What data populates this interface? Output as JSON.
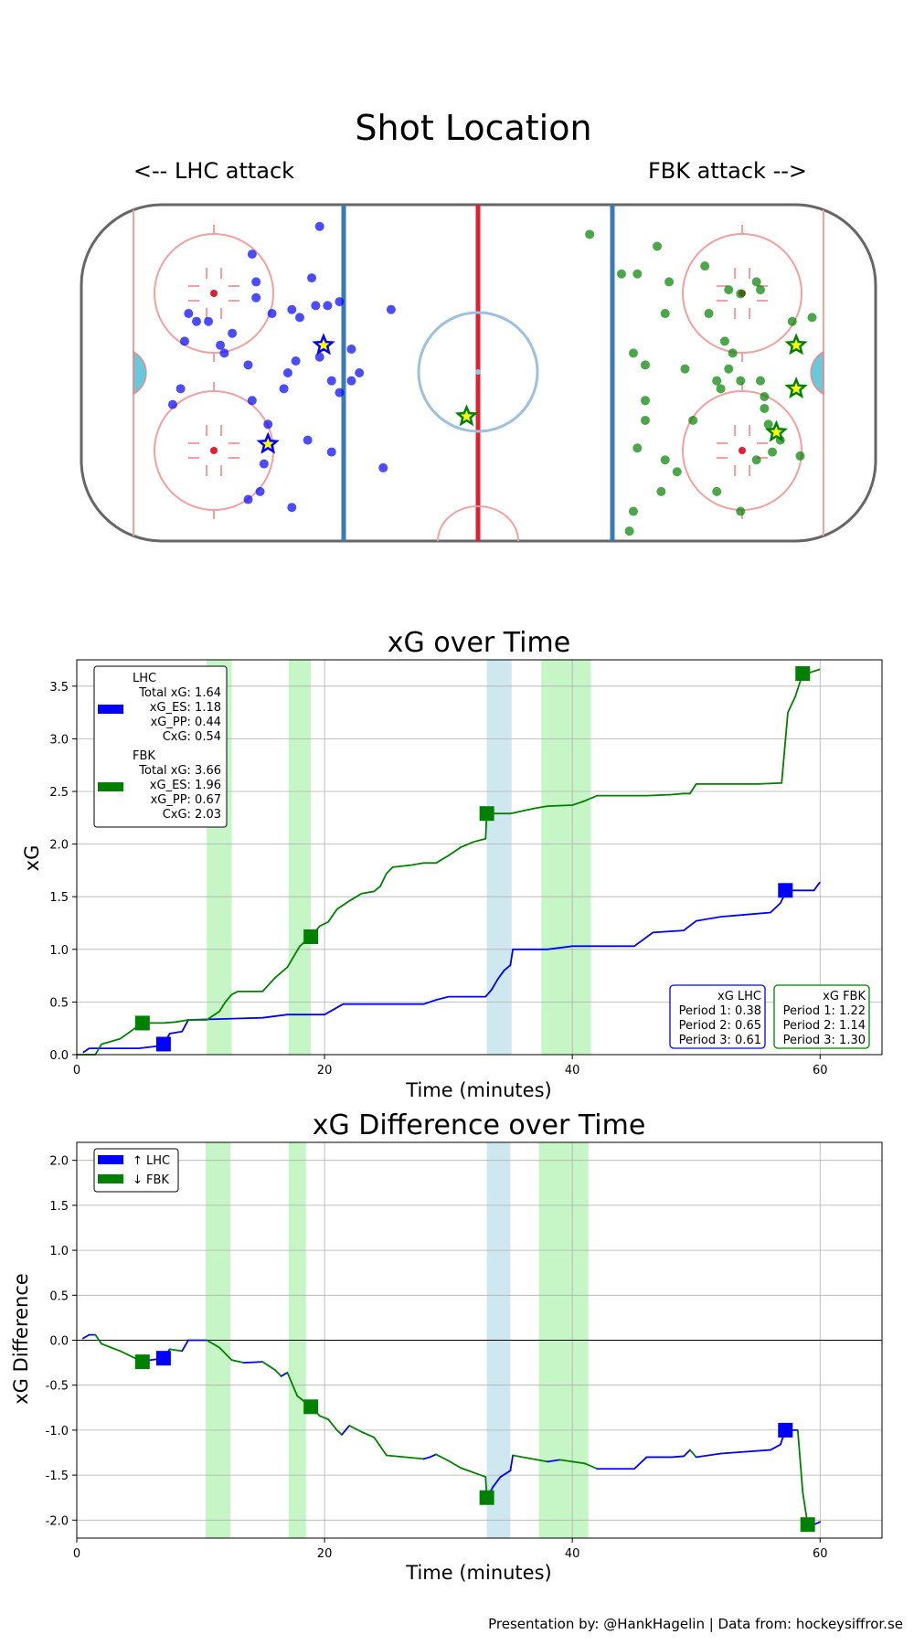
{
  "shot_map": {
    "title": "Shot Location",
    "left_label": "<-- LHC attack",
    "right_label": "FBK attack -->",
    "teams": [
      {
        "name": "LHC",
        "color": "#0000ff"
      },
      {
        "name": "FBK",
        "color": "#008000"
      }
    ]
  },
  "xg_chart": {
    "title": "xG over Time",
    "legend": {
      "lhc_lines": [
        "LHC",
        "Total xG: 1.64",
        "xG_ES: 1.18",
        "xG_PP: 0.44",
        "CxG: 0.54"
      ],
      "fbk_lines": [
        "FBK",
        "Total xG: 3.66",
        "xG_ES: 1.96",
        "xG_PP: 0.67",
        "CxG: 2.03"
      ]
    },
    "period_boxes": {
      "lhc": [
        "xG LHC",
        "Period 1: 0.38",
        "Period 2: 0.65",
        "Period 3: 0.61"
      ],
      "fbk": [
        "xG FBK",
        "Period 1: 1.22",
        "Period 2: 1.14",
        "Period 3: 1.30"
      ]
    }
  },
  "diff_chart": {
    "title": "xG Difference over Time",
    "legend": {
      "lhc": "↑ LHC",
      "fbk": "↓ FBK"
    }
  },
  "footer": "Presentation by: @HankHagelin | Data from: hockeysiffror.se",
  "colors": {
    "lhc": "#0000ff",
    "fbk": "#008000",
    "pp_fbk": "#c6f5c6",
    "pp_lhc": "#cfe8f0"
  },
  "chart_data": [
    {
      "type": "scatter",
      "title": "Shot Location",
      "xlim": [
        -100,
        100
      ],
      "ylim": [
        -42.5,
        42.5
      ],
      "series": [
        {
          "name": "LHC shots",
          "color": "#0000ff",
          "points": [
            [
              -40,
              37
            ],
            [
              -57,
              30
            ],
            [
              -56,
              23
            ],
            [
              -42,
              24
            ],
            [
              -56,
              19
            ],
            [
              -52,
              15
            ],
            [
              -41,
              17
            ],
            [
              -47,
              16
            ],
            [
              -45,
              14
            ],
            [
              -38,
              17
            ],
            [
              -35,
              18
            ],
            [
              -73,
              15
            ],
            [
              -71,
              13
            ],
            [
              -74,
              8
            ],
            [
              -68,
              13
            ],
            [
              -62,
              10
            ],
            [
              -65,
              7
            ],
            [
              -64,
              5
            ],
            [
              -58,
              2
            ],
            [
              -46,
              3
            ],
            [
              -40,
              4
            ],
            [
              -32,
              6
            ],
            [
              -30,
              0
            ],
            [
              -32,
              -2
            ],
            [
              -35,
              -5
            ],
            [
              -48,
              0
            ],
            [
              -49,
              -4
            ],
            [
              -75,
              -4
            ],
            [
              -77,
              -8
            ],
            [
              -57,
              -7
            ],
            [
              -53,
              -13
            ],
            [
              -43,
              -17
            ],
            [
              -37,
              -20
            ],
            [
              -54,
              -23
            ],
            [
              -55,
              -30
            ],
            [
              -58,
              -32
            ],
            [
              -47,
              -34
            ],
            [
              -24,
              -24
            ],
            [
              -22,
              16
            ],
            [
              -37,
              -2
            ]
          ]
        },
        {
          "name": "LHC goals",
          "color": "#0000ff",
          "goal": true,
          "points": [
            [
              -39,
              7
            ],
            [
              -53,
              -18
            ]
          ]
        },
        {
          "name": "FBK shots",
          "color": "#008000",
          "points": [
            [
              28,
              35
            ],
            [
              36,
              25
            ],
            [
              45,
              32
            ],
            [
              40,
              25
            ],
            [
              48,
              23
            ],
            [
              57,
              27
            ],
            [
              63,
              21
            ],
            [
              71,
              21
            ],
            [
              70,
              23
            ],
            [
              66,
              20
            ],
            [
              47,
              15
            ],
            [
              58,
              15
            ],
            [
              79,
              13
            ],
            [
              84,
              14
            ],
            [
              39,
              5
            ],
            [
              42,
              2
            ],
            [
              52,
              1
            ],
            [
              62,
              8
            ],
            [
              64,
              5
            ],
            [
              63,
              1
            ],
            [
              60,
              -2
            ],
            [
              61,
              -4
            ],
            [
              66,
              -2
            ],
            [
              71,
              -2
            ],
            [
              72,
              -6
            ],
            [
              42,
              -7
            ],
            [
              42,
              -12
            ],
            [
              54,
              -12
            ],
            [
              72,
              -9
            ],
            [
              73,
              -13
            ],
            [
              40,
              -19
            ],
            [
              47,
              -22
            ],
            [
              50,
              -25
            ],
            [
              81,
              -21
            ],
            [
              76,
              -17
            ],
            [
              74,
              -20
            ],
            [
              60,
              -30
            ],
            [
              46,
              -30
            ],
            [
              66,
              -35
            ],
            [
              39,
              -35
            ],
            [
              38,
              -40
            ],
            [
              70,
              -22
            ]
          ]
        },
        {
          "name": "FBK goals",
          "color": "#008000",
          "goal": true,
          "points": [
            [
              80,
              7
            ],
            [
              80,
              -4
            ],
            [
              75,
              -15
            ],
            [
              -3,
              -11
            ]
          ]
        }
      ]
    },
    {
      "type": "line",
      "title": "xG over Time",
      "xlabel": "Time (minutes)",
      "ylabel": "xG",
      "xlim": [
        0,
        65
      ],
      "ylim": [
        0,
        3.75
      ],
      "xticks": [
        0,
        20,
        40,
        60
      ],
      "yticks": [
        0.0,
        0.5,
        1.0,
        1.5,
        2.0,
        2.5,
        3.0,
        3.5
      ],
      "pp_fbk": [
        [
          10.5,
          12.5
        ],
        [
          17.1,
          18.9
        ],
        [
          37.5,
          41.5
        ]
      ],
      "pp_lhc": [
        [
          33.1,
          35.1
        ]
      ],
      "series": [
        {
          "name": "LHC",
          "color": "#0000ff",
          "x": [
            0.5,
            1,
            1.5,
            3,
            5,
            6.5,
            7,
            7.5,
            8.5,
            9,
            15,
            17,
            20,
            21.5,
            28,
            29,
            30,
            32,
            33,
            33.5,
            34,
            34.5,
            35,
            35.2,
            38,
            40,
            45,
            46.5,
            49,
            50,
            52,
            54,
            56,
            56.8,
            57.3,
            58.5,
            59.5,
            60
          ],
          "y": [
            0.02,
            0.06,
            0.06,
            0.06,
            0.06,
            0.08,
            0.1,
            0.2,
            0.22,
            0.33,
            0.35,
            0.38,
            0.38,
            0.48,
            0.48,
            0.52,
            0.55,
            0.55,
            0.55,
            0.62,
            0.72,
            0.8,
            0.85,
            1.0,
            1.0,
            1.03,
            1.03,
            1.16,
            1.18,
            1.27,
            1.31,
            1.33,
            1.35,
            1.44,
            1.56,
            1.56,
            1.56,
            1.64
          ]
        },
        {
          "name": "FBK",
          "color": "#008000",
          "x": [
            0,
            1.5,
            2,
            3.5,
            5.3,
            6,
            7,
            8,
            9,
            10.5,
            11.5,
            12,
            12.5,
            13,
            15,
            16,
            17,
            18,
            18.9,
            19.6,
            20.3,
            21,
            22,
            23,
            24,
            24.5,
            25,
            25.5,
            27,
            28,
            29,
            30,
            31,
            32,
            33,
            33.1,
            35,
            37,
            38,
            40,
            41,
            42,
            45,
            46,
            48,
            49,
            49.5,
            50,
            55,
            56.9,
            57.4,
            58,
            58.6,
            59.2,
            60
          ],
          "y": [
            0,
            0,
            0.1,
            0.15,
            0.3,
            0.3,
            0.3,
            0.31,
            0.33,
            0.33,
            0.41,
            0.5,
            0.57,
            0.6,
            0.6,
            0.73,
            0.83,
            1.03,
            1.12,
            1.22,
            1.26,
            1.38,
            1.46,
            1.53,
            1.55,
            1.6,
            1.72,
            1.78,
            1.8,
            1.82,
            1.82,
            1.89,
            1.97,
            2.02,
            2.05,
            2.29,
            2.29,
            2.34,
            2.36,
            2.37,
            2.41,
            2.46,
            2.46,
            2.46,
            2.47,
            2.48,
            2.48,
            2.57,
            2.57,
            2.58,
            3.25,
            3.4,
            3.62,
            3.63,
            3.66
          ]
        }
      ],
      "goals": [
        {
          "team": "LHC",
          "x": [
            7,
            57.2
          ],
          "y": [
            0.1,
            1.56
          ]
        },
        {
          "team": "FBK",
          "x": [
            5.3,
            18.9,
            33.1,
            58.6
          ],
          "y": [
            0.3,
            1.12,
            2.29,
            3.62
          ]
        }
      ],
      "legend": [
        "LHC Total xG: 1.64 xG_ES: 1.18 xG_PP: 0.44 CxG: 0.54",
        "FBK Total xG: 3.66 xG_ES: 1.96 xG_PP: 0.67 CxG: 2.03"
      ]
    },
    {
      "type": "line",
      "title": "xG Difference over Time",
      "xlabel": "Time (minutes)",
      "ylabel": "xG Difference",
      "xlim": [
        0,
        65
      ],
      "ylim": [
        -2.2,
        2.2
      ],
      "xticks": [
        0,
        20,
        40,
        60
      ],
      "yticks": [
        2.0,
        1.5,
        1.0,
        0.5,
        0.0,
        -0.5,
        -1.0,
        -1.5,
        -2.0
      ],
      "pp_fbk": [
        [
          10.4,
          12.4
        ],
        [
          17.1,
          18.5
        ],
        [
          37.3,
          41.3
        ]
      ],
      "pp_lhc": [
        [
          33.1,
          35.0
        ]
      ],
      "series": [
        {
          "name": "xG difference",
          "x": [
            0.5,
            1,
            1.5,
            2,
            3.5,
            5.3,
            6,
            7,
            7.5,
            8.5,
            9,
            10.5,
            11.5,
            12.5,
            13.5,
            15,
            16,
            16.5,
            17,
            17.8,
            18.9,
            19.6,
            20.3,
            21,
            21.4,
            22,
            23,
            24,
            25,
            28,
            28.5,
            29,
            30,
            31,
            32,
            33,
            33.1,
            33.6,
            34.2,
            35,
            35.2,
            38,
            39,
            40,
            41,
            42,
            45,
            46,
            48,
            49,
            49.5,
            50,
            52,
            54,
            56,
            56.8,
            57.2,
            58.2,
            58.6,
            59,
            59.5,
            60
          ],
          "y": [
            0.02,
            0.06,
            0.06,
            -0.04,
            -0.12,
            -0.24,
            -0.22,
            -0.2,
            -0.1,
            -0.12,
            0.0,
            0.0,
            -0.08,
            -0.22,
            -0.25,
            -0.24,
            -0.33,
            -0.4,
            -0.36,
            -0.62,
            -0.74,
            -0.84,
            -0.88,
            -1.0,
            -1.05,
            -0.95,
            -1.02,
            -1.08,
            -1.28,
            -1.32,
            -1.3,
            -1.27,
            -1.34,
            -1.42,
            -1.47,
            -1.52,
            -1.75,
            -1.63,
            -1.52,
            -1.45,
            -1.28,
            -1.35,
            -1.33,
            -1.35,
            -1.37,
            -1.43,
            -1.43,
            -1.3,
            -1.3,
            -1.29,
            -1.22,
            -1.3,
            -1.26,
            -1.24,
            -1.22,
            -1.16,
            -1.0,
            -1.0,
            -1.69,
            -2.05,
            -2.05,
            -2.02
          ]
        }
      ],
      "goals": [
        {
          "team": "LHC",
          "x": [
            7,
            57.2
          ],
          "y": [
            -0.2,
            -1.0
          ]
        },
        {
          "team": "FBK",
          "x": [
            5.3,
            18.9,
            33.1,
            59
          ],
          "y": [
            -0.24,
            -0.74,
            -1.75,
            -2.05
          ]
        }
      ],
      "legend": [
        "↑ LHC",
        "↓ FBK"
      ]
    }
  ]
}
